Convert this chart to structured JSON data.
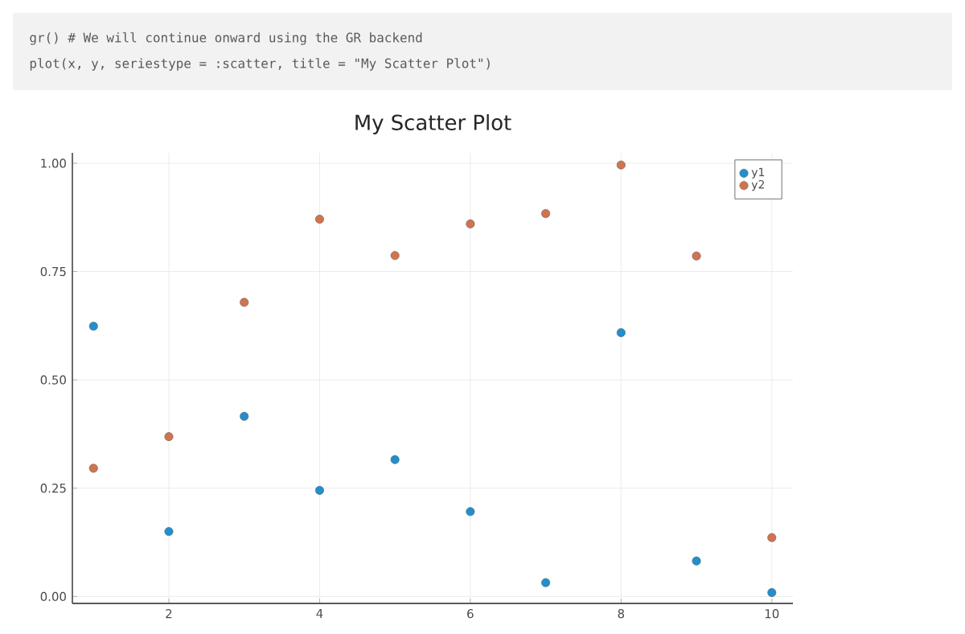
{
  "chart_data": {
    "type": "scatter",
    "title": "My Scatter Plot",
    "annotations": [
      "gr() # We will continue onward using the GR backend",
      "plot(x, y, seriestype = :scatter, title = \"My Scatter Plot\")"
    ],
    "x": [
      1,
      2,
      3,
      4,
      5,
      6,
      7,
      8,
      9,
      10
    ],
    "series": [
      {
        "name": "y1",
        "color": "#1f8fd0",
        "values": [
          0.624,
          0.15,
          0.416,
          0.245,
          0.316,
          0.196,
          0.032,
          0.609,
          0.082,
          0.009
        ]
      },
      {
        "name": "y2",
        "color": "#d2734d",
        "values": [
          0.296,
          0.369,
          0.679,
          0.871,
          0.787,
          0.86,
          0.884,
          0.996,
          0.786,
          0.136
        ]
      }
    ],
    "xlim": [
      0.72,
      10.28
    ],
    "ylim": [
      -0.016,
      1.024
    ],
    "xticks": [
      2,
      4,
      6,
      8,
      10
    ],
    "yticks": [
      {
        "value": 0,
        "label": "0.00"
      },
      {
        "value": 0.25,
        "label": "0.25"
      },
      {
        "value": 0.5,
        "label": "0.50"
      },
      {
        "value": 0.75,
        "label": "0.75"
      },
      {
        "value": 1,
        "label": "1.00"
      }
    ],
    "grid": true,
    "legend": "top right",
    "marker": "circle"
  }
}
